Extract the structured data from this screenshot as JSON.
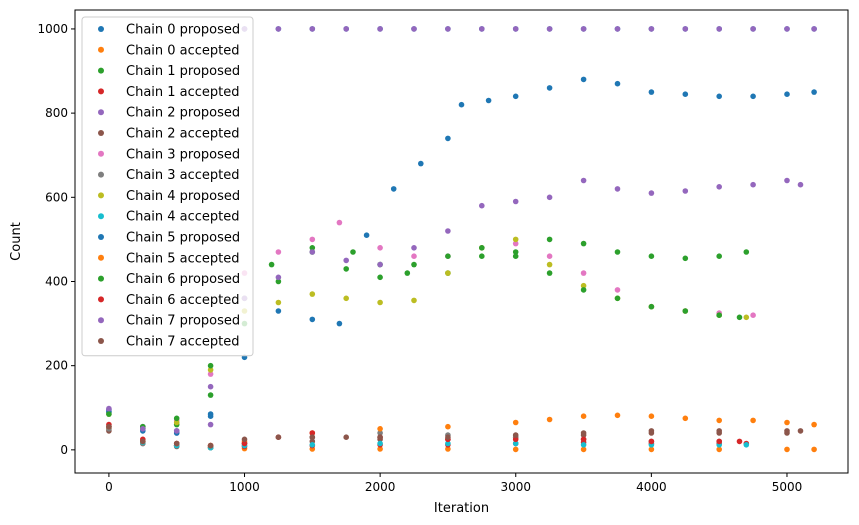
{
  "chart_data": {
    "type": "scatter",
    "title": "",
    "xlabel": "Iteration",
    "ylabel": "Count",
    "xlim": [
      -250,
      5450
    ],
    "ylim": [
      -55,
      1045
    ],
    "xticks": [
      0,
      1000,
      2000,
      3000,
      4000,
      5000
    ],
    "yticks": [
      0,
      200,
      400,
      600,
      800,
      1000
    ],
    "grid": false,
    "legend_position": "top-left",
    "series": [
      {
        "name": "Chain 0 proposed",
        "color": "#1f77b4",
        "x": [
          0,
          250,
          500,
          750,
          1000,
          1250,
          1500,
          1750,
          2000,
          2250,
          2500,
          2750,
          3000,
          3250,
          3500,
          3750,
          4000,
          4250,
          4500,
          4750,
          5000,
          5200
        ],
        "y": [
          95,
          55,
          45,
          85,
          1000,
          1000,
          1000,
          1000,
          1000,
          1000,
          1000,
          1000,
          1000,
          1000,
          1000,
          1000,
          1000,
          1000,
          1000,
          1000,
          1000,
          1000
        ]
      },
      {
        "name": "Chain 0 accepted",
        "color": "#ff7f0e",
        "x": [
          0,
          250,
          500,
          750,
          1000,
          1500,
          2000,
          2500,
          3000,
          3500,
          4000,
          4500,
          5000,
          5200
        ],
        "y": [
          50,
          20,
          10,
          5,
          3,
          2,
          2,
          2,
          1,
          1,
          1,
          1,
          1,
          1
        ]
      },
      {
        "name": "Chain 1 proposed",
        "color": "#2ca02c",
        "x": [
          0,
          250,
          500,
          750,
          1000,
          1200,
          1500,
          1800,
          2000,
          2200,
          2500,
          2750,
          3000,
          3250,
          3500,
          3750,
          4000,
          4250,
          4500,
          4700
        ],
        "y": [
          90,
          50,
          60,
          130,
          300,
          440,
          480,
          470,
          440,
          420,
          420,
          460,
          470,
          500,
          490,
          470,
          460,
          455,
          460,
          470
        ]
      },
      {
        "name": "Chain 1 accepted",
        "color": "#d62728",
        "x": [
          0,
          250,
          500,
          750,
          1000,
          1500,
          2000,
          2500,
          3000,
          3500,
          4000,
          4500,
          4700
        ],
        "y": [
          55,
          20,
          10,
          8,
          8,
          10,
          12,
          12,
          15,
          18,
          15,
          15,
          15
        ]
      },
      {
        "name": "Chain 2 proposed",
        "color": "#9467bd",
        "x": [
          0,
          250,
          500,
          750,
          1000,
          1250,
          1500,
          1750,
          2000,
          2250,
          2500,
          2750,
          3000,
          3250,
          3500,
          3750,
          4000,
          4250,
          4500,
          4750,
          5000,
          5200
        ],
        "y": [
          95,
          50,
          40,
          60,
          1000,
          1000,
          1000,
          1000,
          1000,
          1000,
          1000,
          1000,
          1000,
          1000,
          1000,
          1000,
          1000,
          1000,
          1000,
          1000,
          1000,
          1000
        ]
      },
      {
        "name": "Chain 2 accepted",
        "color": "#8c564b",
        "x": [
          0,
          250,
          500,
          750,
          1000,
          1500,
          2000,
          2500,
          3000,
          3500,
          4000,
          4500,
          5000
        ],
        "y": [
          45,
          15,
          8,
          5,
          15,
          20,
          25,
          25,
          30,
          35,
          40,
          40,
          40
        ]
      },
      {
        "name": "Chain 3 proposed",
        "color": "#e377c2",
        "x": [
          0,
          250,
          500,
          750,
          1000,
          1250,
          1500,
          1700,
          2000,
          2250,
          2500,
          2750,
          3000,
          3250,
          3500,
          3750,
          4000,
          4250,
          4500,
          4750
        ],
        "y": [
          90,
          55,
          70,
          180,
          420,
          470,
          500,
          540,
          480,
          460,
          460,
          480,
          490,
          460,
          420,
          380,
          340,
          330,
          325,
          320
        ]
      },
      {
        "name": "Chain 3 accepted",
        "color": "#7f7f7f",
        "x": [
          0,
          250,
          500,
          750,
          1000,
          1500,
          2000,
          2500,
          3000,
          3500,
          4000,
          4500
        ],
        "y": [
          50,
          15,
          10,
          5,
          15,
          30,
          40,
          35,
          30,
          25,
          20,
          20
        ]
      },
      {
        "name": "Chain 4 proposed",
        "color": "#bcbd22",
        "x": [
          0,
          250,
          500,
          750,
          1000,
          1250,
          1500,
          1750,
          2000,
          2250,
          2500,
          2750,
          3000,
          3250,
          3500,
          3750,
          4000,
          4250,
          4500,
          4700
        ],
        "y": [
          85,
          50,
          65,
          190,
          330,
          350,
          370,
          360,
          350,
          355,
          420,
          480,
          500,
          440,
          390,
          360,
          340,
          330,
          320,
          315
        ]
      },
      {
        "name": "Chain 4 accepted",
        "color": "#17becf",
        "x": [
          0,
          250,
          500,
          750,
          1000,
          1500,
          2000,
          2500,
          3000,
          3500,
          4000,
          4500,
          4700
        ],
        "y": [
          55,
          18,
          10,
          5,
          10,
          12,
          15,
          15,
          15,
          12,
          12,
          12,
          12
        ]
      },
      {
        "name": "Chain 5 proposed",
        "color": "#1f77b4",
        "x": [
          0,
          250,
          500,
          750,
          1000,
          1250,
          1500,
          1700,
          1900,
          2100,
          2300,
          2500,
          2600,
          2800,
          3000,
          3250,
          3500,
          3750,
          4000,
          4250,
          4500,
          4750,
          5000,
          5200
        ],
        "y": [
          90,
          45,
          40,
          80,
          220,
          330,
          310,
          300,
          510,
          620,
          680,
          740,
          820,
          830,
          840,
          860,
          880,
          870,
          850,
          845,
          840,
          840,
          845,
          850
        ]
      },
      {
        "name": "Chain 5 accepted",
        "color": "#ff7f0e",
        "x": [
          0,
          250,
          500,
          750,
          1000,
          1500,
          2000,
          2500,
          3000,
          3250,
          3500,
          3750,
          4000,
          4250,
          4500,
          4750,
          5000,
          5200
        ],
        "y": [
          55,
          20,
          15,
          10,
          20,
          40,
          50,
          55,
          65,
          72,
          80,
          82,
          80,
          75,
          70,
          70,
          65,
          60
        ]
      },
      {
        "name": "Chain 6 proposed",
        "color": "#2ca02c",
        "x": [
          0,
          250,
          500,
          750,
          1000,
          1250,
          1500,
          1750,
          2000,
          2250,
          2500,
          2750,
          3000,
          3250,
          3500,
          3750,
          4000,
          4250,
          4500,
          4650
        ],
        "y": [
          85,
          55,
          75,
          200,
          360,
          400,
          470,
          430,
          410,
          440,
          460,
          480,
          460,
          420,
          380,
          360,
          340,
          330,
          320,
          315
        ]
      },
      {
        "name": "Chain 6 accepted",
        "color": "#d62728",
        "x": [
          0,
          250,
          500,
          750,
          1000,
          1250,
          1500,
          2000,
          2500,
          3000,
          3500,
          4000,
          4500,
          4650
        ],
        "y": [
          60,
          25,
          15,
          10,
          15,
          30,
          40,
          30,
          25,
          25,
          25,
          20,
          20,
          20
        ]
      },
      {
        "name": "Chain 7 proposed",
        "color": "#9467bd",
        "x": [
          0,
          250,
          500,
          750,
          1000,
          1250,
          1500,
          1750,
          2000,
          2250,
          2500,
          2750,
          3000,
          3250,
          3500,
          3750,
          4000,
          4250,
          4500,
          4750,
          5000,
          5100
        ],
        "y": [
          98,
          50,
          45,
          150,
          360,
          410,
          470,
          450,
          440,
          480,
          520,
          580,
          590,
          600,
          640,
          620,
          610,
          615,
          625,
          630,
          640,
          630
        ]
      },
      {
        "name": "Chain 7 accepted",
        "color": "#8c564b",
        "x": [
          0,
          250,
          500,
          750,
          1000,
          1250,
          1500,
          1750,
          2000,
          2500,
          3000,
          3500,
          4000,
          4500,
          5000,
          5100
        ],
        "y": [
          55,
          20,
          15,
          10,
          25,
          30,
          30,
          30,
          30,
          30,
          35,
          40,
          45,
          45,
          45,
          45
        ]
      }
    ]
  }
}
